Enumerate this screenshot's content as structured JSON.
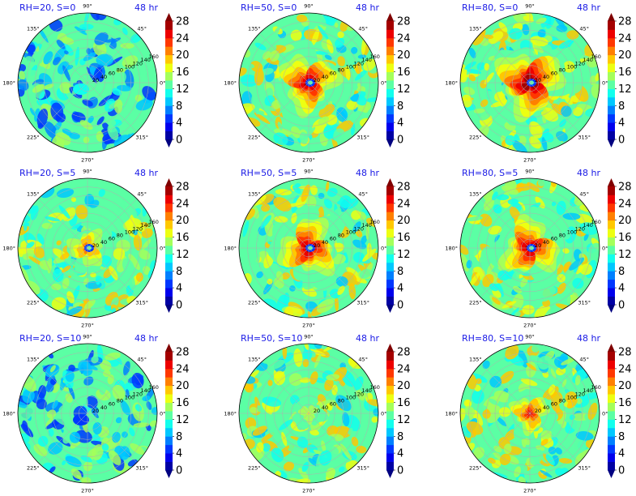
{
  "figure": {
    "time_label": "48 hr",
    "colormap": "jet",
    "colorbar": {
      "min": 0,
      "max": 28,
      "levels": [
        0,
        2,
        4,
        6,
        8,
        10,
        12,
        14,
        16,
        18,
        20,
        22,
        24,
        26,
        28
      ],
      "tick_labels": [
        "0",
        "4",
        "8",
        "12",
        "16",
        "20",
        "24",
        "28"
      ],
      "extend": "both"
    }
  },
  "chart_data": [
    {
      "type": "heatmap",
      "projection": "polar",
      "title": "RH=20, S=0",
      "time": "48 hr",
      "intensity": "weak",
      "core_value": 10,
      "eye": false,
      "radial_ticks": [
        "20",
        "40",
        "60",
        "80",
        "100",
        "120",
        "140",
        "160"
      ],
      "angular_ticks": [
        "0°",
        "45°",
        "90°",
        "135°",
        "180°",
        "225°",
        "270°",
        "315°"
      ],
      "colorbar_ticks": [
        "0",
        "4",
        "8",
        "12",
        "16",
        "20",
        "24",
        "28"
      ]
    },
    {
      "type": "heatmap",
      "projection": "polar",
      "title": "RH=50, S=0",
      "time": "48 hr",
      "intensity": "strong",
      "core_value": 27,
      "eye": true,
      "radial_ticks": [
        "20",
        "40",
        "60",
        "80",
        "100",
        "120",
        "140",
        "160"
      ],
      "angular_ticks": [
        "0°",
        "45°",
        "90°",
        "135°",
        "180°",
        "225°",
        "270°",
        "315°"
      ],
      "colorbar_ticks": [
        "0",
        "4",
        "8",
        "12",
        "16",
        "20",
        "24",
        "28"
      ]
    },
    {
      "type": "heatmap",
      "projection": "polar",
      "title": "RH=80, S=0",
      "time": "48 hr",
      "intensity": "strong",
      "core_value": 28,
      "eye": true,
      "radial_ticks": [
        "20",
        "40",
        "60",
        "80",
        "100",
        "120",
        "140",
        "160"
      ],
      "angular_ticks": [
        "0°",
        "45°",
        "90°",
        "135°",
        "180°",
        "225°",
        "270°",
        "315°"
      ],
      "colorbar_ticks": [
        "0",
        "4",
        "8",
        "12",
        "16",
        "20",
        "24",
        "28"
      ]
    },
    {
      "type": "heatmap",
      "projection": "polar",
      "title": "RH=20, S=5",
      "time": "48 hr",
      "intensity": "moderate",
      "core_value": 22,
      "eye": true,
      "radial_ticks": [
        "20",
        "40",
        "60",
        "80",
        "100",
        "120",
        "140",
        "160"
      ],
      "angular_ticks": [
        "0°",
        "45°",
        "90°",
        "135°",
        "180°",
        "225°",
        "270°",
        "315°"
      ],
      "colorbar_ticks": [
        "0",
        "4",
        "8",
        "12",
        "16",
        "20",
        "24",
        "28"
      ]
    },
    {
      "type": "heatmap",
      "projection": "polar",
      "title": "RH=50, S=5",
      "time": "48 hr",
      "intensity": "strong",
      "core_value": 27,
      "eye": true,
      "radial_ticks": [
        "20",
        "40",
        "60",
        "80",
        "100",
        "120",
        "140",
        "160"
      ],
      "angular_ticks": [
        "0°",
        "45°",
        "90°",
        "135°",
        "180°",
        "225°",
        "270°",
        "315°"
      ],
      "colorbar_ticks": [
        "0",
        "4",
        "8",
        "12",
        "16",
        "20",
        "24",
        "28"
      ]
    },
    {
      "type": "heatmap",
      "projection": "polar",
      "title": "RH=80, S=5",
      "time": "48 hr",
      "intensity": "strong",
      "core_value": 27,
      "eye": true,
      "radial_ticks": [
        "20",
        "40",
        "60",
        "80",
        "100",
        "120",
        "140",
        "160"
      ],
      "angular_ticks": [
        "0°",
        "45°",
        "90°",
        "135°",
        "180°",
        "225°",
        "270°",
        "315°"
      ],
      "colorbar_ticks": [
        "0",
        "4",
        "8",
        "12",
        "16",
        "20",
        "24",
        "28"
      ]
    },
    {
      "type": "heatmap",
      "projection": "polar",
      "title": "RH=20, S=10",
      "time": "48 hr",
      "intensity": "weak",
      "core_value": 4,
      "eye": false,
      "radial_ticks": [
        "20",
        "40",
        "60",
        "80",
        "100",
        "120",
        "140",
        "160"
      ],
      "angular_ticks": [
        "0°",
        "45°",
        "90°",
        "135°",
        "180°",
        "225°",
        "270°",
        "315°"
      ],
      "colorbar_ticks": [
        "0",
        "4",
        "8",
        "12",
        "16",
        "20",
        "24",
        "28"
      ]
    },
    {
      "type": "heatmap",
      "projection": "polar",
      "title": "RH=50, S=10",
      "time": "48 hr",
      "intensity": "weak",
      "core_value": 16,
      "eye": false,
      "radial_ticks": [
        "20",
        "40",
        "60",
        "80",
        "100",
        "120",
        "140",
        "160"
      ],
      "angular_ticks": [
        "0°",
        "45°",
        "90°",
        "135°",
        "180°",
        "225°",
        "270°",
        "315°"
      ],
      "colorbar_ticks": [
        "0",
        "4",
        "8",
        "12",
        "16",
        "20",
        "24",
        "28"
      ]
    },
    {
      "type": "heatmap",
      "projection": "polar",
      "title": "RH=80, S=10",
      "time": "48 hr",
      "intensity": "moderate",
      "core_value": 24,
      "eye": false,
      "radial_ticks": [
        "20",
        "40",
        "60",
        "80",
        "100",
        "120",
        "140",
        "160"
      ],
      "angular_ticks": [
        "0°",
        "45°",
        "90°",
        "135°",
        "180°",
        "225°",
        "270°",
        "315°"
      ],
      "colorbar_ticks": [
        "0",
        "4",
        "8",
        "12",
        "16",
        "20",
        "24",
        "28"
      ]
    }
  ]
}
